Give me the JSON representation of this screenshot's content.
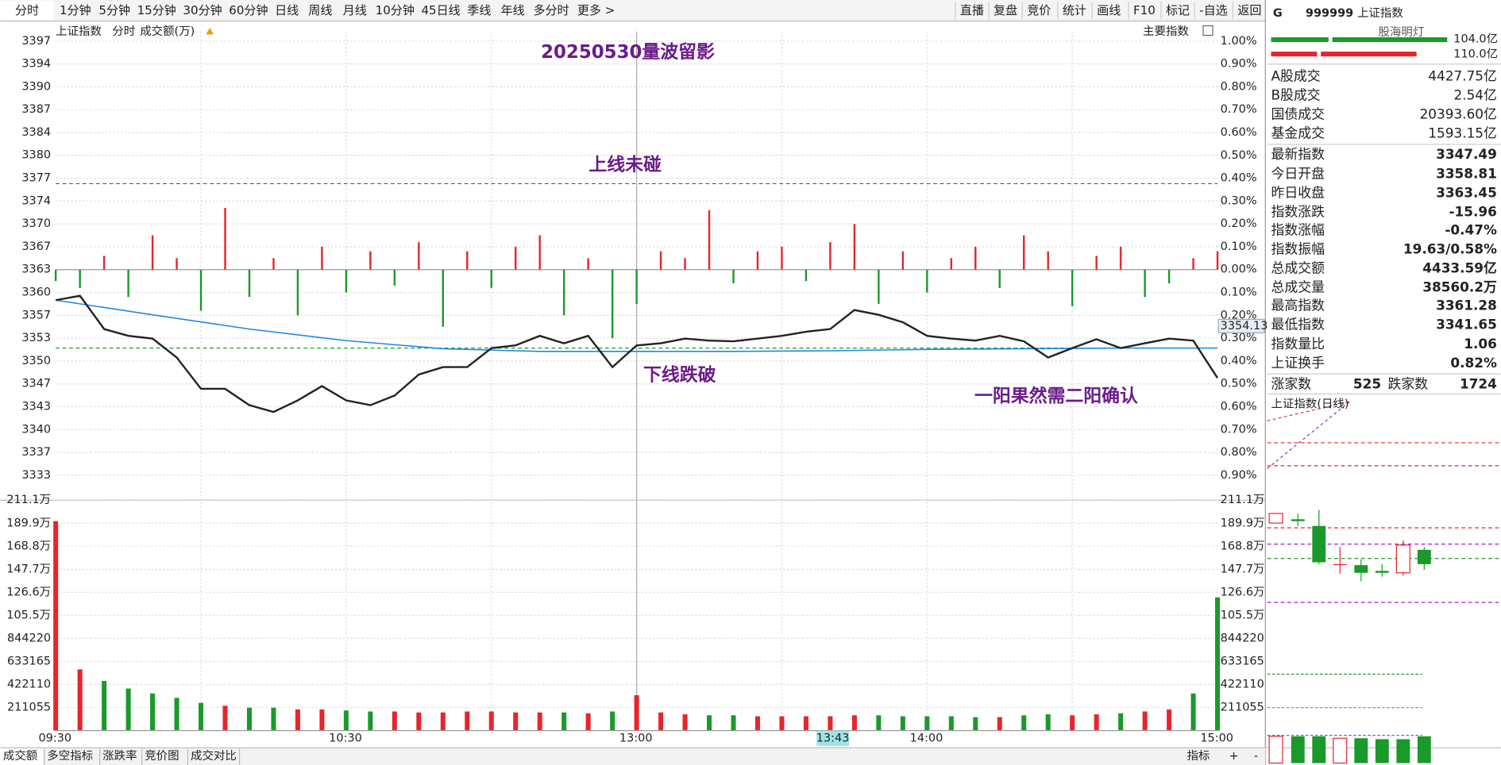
{
  "toolbar": {
    "left": [
      "分时",
      "1分钟",
      "5分钟",
      "15分钟",
      "30分钟",
      "60分钟",
      "日线",
      "周线",
      "月线",
      "10分钟",
      "45日线",
      "季线",
      "年线",
      "多分时",
      "更多 >"
    ],
    "right": [
      "直播",
      "复盘",
      "竞价",
      "统计",
      "画线",
      "F10",
      "标记",
      "-自选",
      "返回"
    ]
  },
  "header": {
    "index": "上证指数",
    "mode": "分时",
    "volume_label": "成交额(万)",
    "selector": "主要指数"
  },
  "chart_data": [
    {
      "type": "line",
      "title": "20250530量波留影",
      "annotations": [
        "上线未碰",
        "下线跌破",
        "一阳果然需二阳确认"
      ],
      "xlim": [
        0,
        240
      ],
      "x": [
        0,
        5,
        10,
        15,
        20,
        25,
        30,
        35,
        40,
        45,
        50,
        55,
        60,
        65,
        70,
        75,
        80,
        85,
        90,
        95,
        100,
        105,
        110,
        115,
        120,
        125,
        130,
        135,
        140,
        145,
        150,
        155,
        160,
        165,
        170,
        175,
        180,
        185,
        190,
        195,
        200,
        205,
        210,
        215,
        220,
        225,
        230,
        235,
        240
      ],
      "series": [
        {
          "color": "#222222",
          "values": [
            3358.95,
            3359.6,
            3354.7,
            3353.7,
            3353.3,
            3350.5,
            3345.9,
            3345.9,
            3343.5,
            3342.5,
            3344.2,
            3346.3,
            3344.2,
            3343.5,
            3344.9,
            3348.0,
            3349.1,
            3349.1,
            3351.9,
            3352.3,
            3353.7,
            3352.6,
            3353.7,
            3349.1,
            3352.3,
            3352.6,
            3353.3,
            3353.0,
            3352.9,
            3353.3,
            3353.7,
            3354.3,
            3354.7,
            3357.5,
            3356.8,
            3355.7,
            3353.7,
            3353.3,
            3353.0,
            3353.7,
            3352.9,
            3350.5,
            3351.9,
            3353.2,
            3351.9,
            3352.6,
            3353.3,
            3353.0,
            3347.49
          ]
        },
        {
          "color": "#1e88e5",
          "x": [
            0,
            20,
            40,
            60,
            80,
            100,
            120,
            140,
            160,
            180,
            200,
            220,
            240
          ],
          "values": [
            3358.95,
            3356.8,
            3354.7,
            3353.0,
            3351.8,
            3351.4,
            3351.4,
            3351.4,
            3351.5,
            3351.7,
            3351.8,
            3351.9,
            3351.9
          ]
        },
        {
          "type": "bar",
          "axis": "y2",
          "colors": [
            "#e8242c",
            "#1a9a2a"
          ],
          "values": [
            -0.05,
            -0.08,
            0.06,
            -0.12,
            0.15,
            0.05,
            -0.18,
            0.27,
            -0.12,
            0.05,
            -0.2,
            0.1,
            -0.1,
            0.08,
            -0.07,
            0.12,
            -0.25,
            0.08,
            -0.08,
            0.1,
            0.15,
            -0.2,
            0.05,
            -0.3,
            -0.15,
            0.08,
            0.05,
            0.26,
            -0.06,
            0.08,
            0.1,
            -0.05,
            0.12,
            0.2,
            -0.15,
            0.08,
            -0.1,
            0.05,
            0.1,
            -0.08,
            0.15,
            0.08,
            -0.16,
            0.06,
            0.1,
            -0.12,
            -0.06,
            0.05,
            0.08
          ]
        }
      ],
      "ylim": [
        3333.18,
        3397.08
      ],
      "yticks": [
        {
          "value": 3397.08,
          "label": "3397"
        },
        {
          "value": 3393.72,
          "label": "3394"
        },
        {
          "value": 3390.36,
          "label": "3390"
        },
        {
          "value": 3386.99,
          "label": "3387"
        },
        {
          "value": 3383.63,
          "label": "3384"
        },
        {
          "value": 3380.27,
          "label": "3380"
        },
        {
          "value": 3376.9,
          "label": "3377"
        },
        {
          "value": 3373.54,
          "label": "3374"
        },
        {
          "value": 3370.18,
          "label": "3370"
        },
        {
          "value": 3366.81,
          "label": "3367"
        },
        {
          "value": 3363.45,
          "label": "3363"
        },
        {
          "value": 3360.09,
          "label": "3360"
        },
        {
          "value": 3356.72,
          "label": "3357"
        },
        {
          "value": 3353.36,
          "label": "3353"
        },
        {
          "value": 3350.0,
          "label": "3350"
        },
        {
          "value": 3346.63,
          "label": "3347"
        },
        {
          "value": 3343.27,
          "label": "3343"
        },
        {
          "value": 3339.91,
          "label": "3340"
        },
        {
          "value": 3336.54,
          "label": "3337"
        },
        {
          "value": 3333.18,
          "label": "3333"
        }
      ],
      "y2lim": [
        -0.9,
        1.0
      ],
      "y2ticks": [
        {
          "value": 1.0,
          "label": "1.00%"
        },
        {
          "value": 0.9,
          "label": "0.90%"
        },
        {
          "value": 0.8,
          "label": "0.80%"
        },
        {
          "value": 0.7,
          "label": "0.70%"
        },
        {
          "value": 0.6,
          "label": "0.60%"
        },
        {
          "value": 0.5,
          "label": "0.50%"
        },
        {
          "value": 0.4,
          "label": "0.40%"
        },
        {
          "value": 0.3,
          "label": "0.30%"
        },
        {
          "value": 0.2,
          "label": "0.20%"
        },
        {
          "value": 0.1,
          "label": "0.10%"
        },
        {
          "value": 0,
          "label": "0.00%"
        },
        {
          "value": -0.1,
          "label": "0.10%"
        },
        {
          "value": -0.2,
          "label": "0.20%"
        },
        {
          "value": -0.3,
          "label": "0.30%"
        },
        {
          "value": -0.4,
          "label": "0.40%"
        },
        {
          "value": -0.5,
          "label": "0.50%"
        },
        {
          "value": -0.6,
          "label": "0.60%"
        },
        {
          "value": -0.7,
          "label": "0.70%"
        },
        {
          "value": -0.8,
          "label": "0.80%"
        },
        {
          "value": -0.9,
          "label": "0.90%"
        }
      ],
      "ref_lines": [
        {
          "value": 3376.1,
          "color": "#a020c0"
        },
        {
          "value": 3351.9,
          "color": "#1a9a2a"
        }
      ],
      "last_label": "3354.13",
      "grid": true
    },
    {
      "type": "bar",
      "xlim": [
        0,
        240
      ],
      "x": [
        0,
        5,
        10,
        15,
        20,
        25,
        30,
        35,
        40,
        45,
        50,
        55,
        60,
        65,
        70,
        75,
        80,
        85,
        90,
        95,
        100,
        105,
        110,
        115,
        120,
        125,
        130,
        135,
        140,
        145,
        150,
        155,
        160,
        165,
        170,
        175,
        180,
        185,
        190,
        195,
        200,
        205,
        210,
        215,
        220,
        225,
        230,
        235,
        240
      ],
      "values": [
        1918000,
        560000,
        455000,
        385000,
        340000,
        300000,
        254000,
        228000,
        210000,
        210000,
        193000,
        193000,
        184000,
        175000,
        175000,
        166000,
        166000,
        175000,
        175000,
        166000,
        166000,
        166000,
        158000,
        175000,
        324000,
        166000,
        149000,
        140000,
        140000,
        131000,
        131000,
        131000,
        131000,
        140000,
        140000,
        131000,
        131000,
        131000,
        123000,
        123000,
        140000,
        149000,
        140000,
        149000,
        158000,
        175000,
        193000,
        340000,
        1220000
      ],
      "colors": [
        "#e8242c",
        "#1a9a2a"
      ],
      "ylim": [
        0,
        2110550
      ],
      "yticks": [
        {
          "value": 2110550,
          "label": "211.1万"
        },
        {
          "value": 1899495,
          "label": "189.9万"
        },
        {
          "value": 1688440,
          "label": "168.8万"
        },
        {
          "value": 1477385,
          "label": "147.7万"
        },
        {
          "value": 1266330,
          "label": "126.6万"
        },
        {
          "value": 1055275,
          "label": "105.5万"
        },
        844220,
        633165,
        422110,
        211055
      ],
      "time_labels": [
        "09:30",
        "10:30",
        "13:00",
        "14:00",
        "15:00"
      ],
      "cursor_label": "13:43",
      "grid": true
    }
  ],
  "sidebar": {
    "flag": "G",
    "code": "999999",
    "name": "上证指数",
    "watermark": "股海明灯",
    "top_values": [
      "104.0亿",
      "110.0亿"
    ],
    "rows": [
      {
        "label": "A股成交",
        "value": "4427.75亿",
        "color": "#222222"
      },
      {
        "label": "B股成交",
        "value": "2.54亿",
        "color": "#222222"
      },
      {
        "label": "国债成交",
        "value": "20393.60亿",
        "color": "#222222"
      },
      {
        "label": "基金成交",
        "value": "1593.15亿",
        "color": "#222222"
      },
      {
        "label": "最新指数",
        "value": "3347.49",
        "color": "#1a9a2a"
      },
      {
        "label": "今日开盘",
        "value": "3358.81",
        "color": "#1a9a2a"
      },
      {
        "label": "昨日收盘",
        "value": "3363.45",
        "color": "#222222"
      },
      {
        "label": "指数涨跌",
        "value": "-15.96",
        "color": "#1a9a2a"
      },
      {
        "label": "指数涨幅",
        "value": "-0.47%",
        "color": "#1a9a2a"
      },
      {
        "label": "指数振幅",
        "value": "19.63/0.58%",
        "color": "#222222"
      },
      {
        "label": "总成交额",
        "value": "4433.59亿",
        "color": "#1a9a2a"
      },
      {
        "label": "总成交量",
        "value": "38560.2万",
        "color": "#1a9a2a"
      },
      {
        "label": "最高指数",
        "value": "3361.28",
        "color": "#1a9a2a"
      },
      {
        "label": "最低指数",
        "value": "3341.65",
        "color": "#1a9a2a"
      },
      {
        "label": "指数量比",
        "value": "1.06",
        "color": "#e8242c"
      },
      {
        "label": "上证换手",
        "value": "0.82%",
        "color": "#222222"
      }
    ],
    "breadth": {
      "up_label": "涨家数",
      "up": "525",
      "down_label": "跌家数",
      "down": "1724"
    },
    "daily_title": "上证指数(日线)"
  },
  "bottom_tabs": [
    "成交额",
    "多空指标",
    "涨跌率",
    "竞价图",
    "成交对比"
  ],
  "bottom_right": [
    "指标",
    "+",
    "-"
  ]
}
